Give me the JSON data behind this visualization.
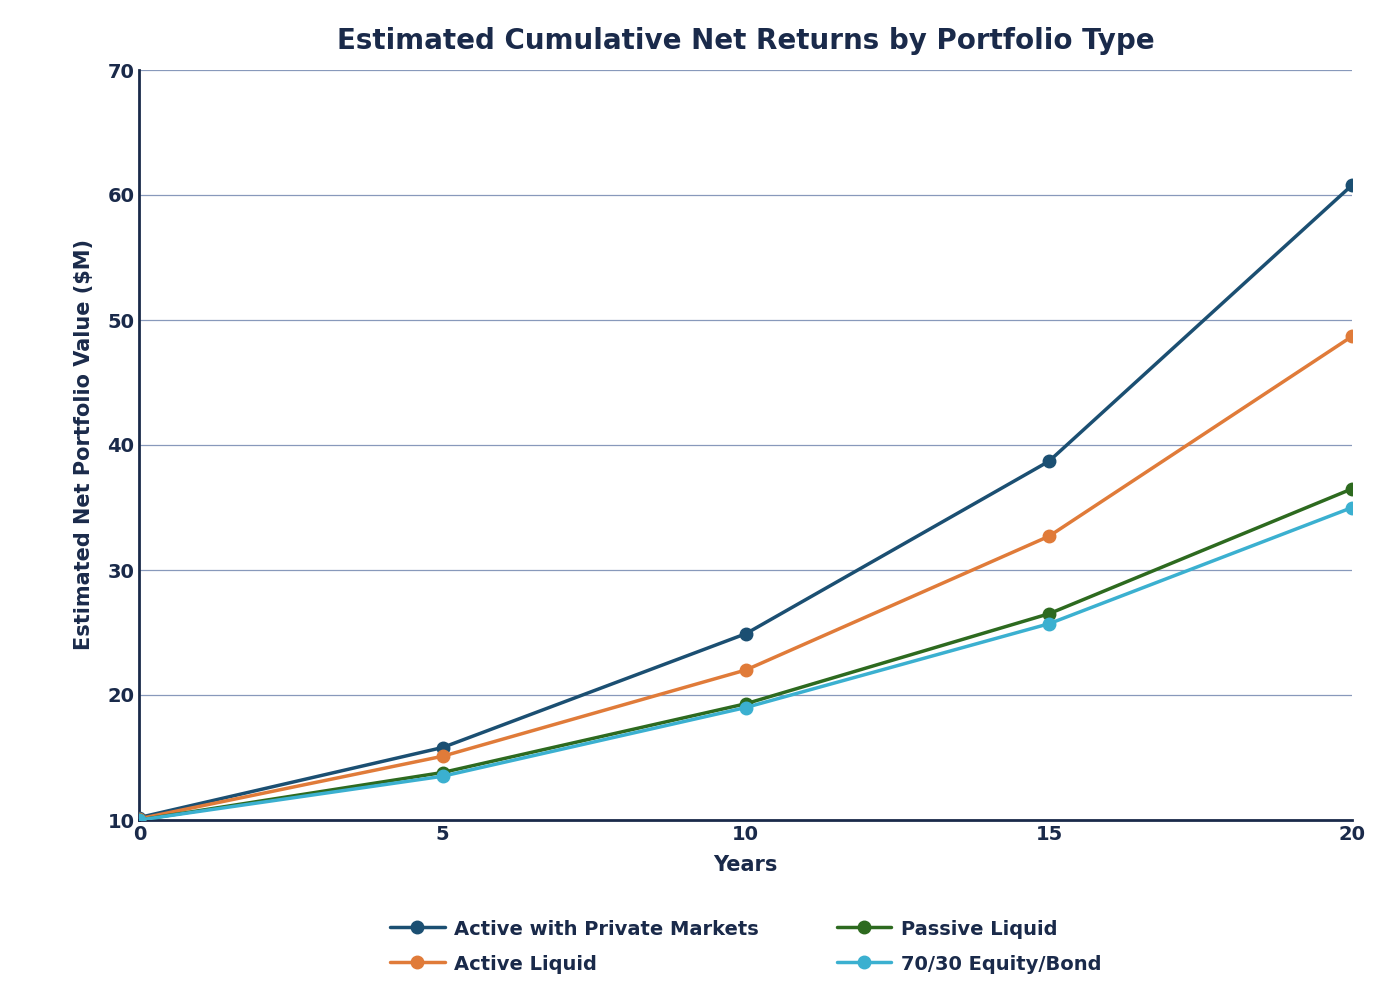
{
  "title": "Estimated Cumulative Net Returns by Portfolio Type",
  "xlabel": "Years",
  "ylabel": "Estimated Net Portfolio Value ($M)",
  "xlim": [
    0,
    20
  ],
  "ylim": [
    10,
    70
  ],
  "yticks": [
    10,
    20,
    30,
    40,
    50,
    60,
    70
  ],
  "xticks": [
    0,
    5,
    10,
    15,
    20
  ],
  "series": [
    {
      "label": "Active with Private Markets",
      "color": "#1B4F72",
      "x": [
        0,
        5,
        10,
        15,
        20
      ],
      "y": [
        10.2,
        15.8,
        24.9,
        38.7,
        60.8
      ]
    },
    {
      "label": "Active Liquid",
      "color": "#E07B39",
      "x": [
        0,
        5,
        10,
        15,
        20
      ],
      "y": [
        10.1,
        15.1,
        22.0,
        32.7,
        48.7
      ]
    },
    {
      "label": "Passive Liquid",
      "color": "#2D6A1F",
      "x": [
        0,
        5,
        10,
        15,
        20
      ],
      "y": [
        10.0,
        13.8,
        19.3,
        26.5,
        36.5
      ]
    },
    {
      "label": "70/30 Equity/Bond",
      "color": "#3BB0D0",
      "x": [
        0,
        5,
        10,
        15,
        20
      ],
      "y": [
        10.0,
        13.5,
        19.0,
        25.7,
        35.0
      ]
    }
  ],
  "background_color": "#ffffff",
  "grid_color": "#8899bb",
  "text_color": "#1a2a4a",
  "spine_color": "#1a2a4a",
  "title_fontsize": 20,
  "label_fontsize": 15,
  "tick_fontsize": 14,
  "legend_fontsize": 14,
  "linewidth": 2.5,
  "markersize": 9,
  "legend_order": [
    0,
    2,
    1,
    3
  ]
}
